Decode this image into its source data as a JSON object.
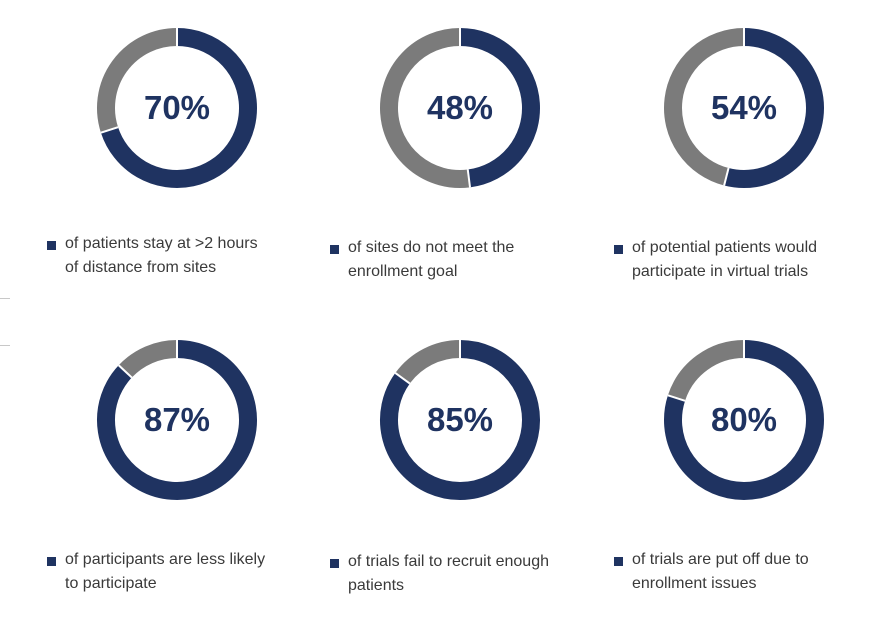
{
  "chart_data": [
    {
      "type": "pie",
      "title": "",
      "values": [
        70,
        30
      ],
      "labels": [
        "highlighted",
        "remainder"
      ],
      "value_label": "70%",
      "caption": "of patients stay at >2 hours of distance from sites",
      "caption_lines": [
        "of patients stay at >2 hours",
        "of distance from sites"
      ]
    },
    {
      "type": "pie",
      "title": "",
      "values": [
        48,
        52
      ],
      "labels": [
        "highlighted",
        "remainder"
      ],
      "value_label": "48%",
      "caption": "of sites do not meet the enrollment goal",
      "caption_lines": [
        "of sites do not meet the",
        "enrollment goal"
      ]
    },
    {
      "type": "pie",
      "title": "",
      "values": [
        54,
        46
      ],
      "labels": [
        "highlighted",
        "remainder"
      ],
      "value_label": "54%",
      "caption": "of potential patients would participate in virtual trials",
      "caption_lines": [
        "of potential patients would",
        "participate in virtual trials"
      ]
    },
    {
      "type": "pie",
      "title": "",
      "values": [
        87,
        13
      ],
      "labels": [
        "highlighted",
        "remainder"
      ],
      "value_label": "87%",
      "caption": "of participants are less likely to participate",
      "caption_lines": [
        "of participants are less likely",
        "to participate"
      ]
    },
    {
      "type": "pie",
      "title": "",
      "values": [
        85,
        15
      ],
      "labels": [
        "highlighted",
        "remainder"
      ],
      "value_label": "85%",
      "caption": "of trials fail to recruit enough patients",
      "caption_lines": [
        "of trials fail to recruit enough",
        "patients"
      ]
    },
    {
      "type": "pie",
      "title": "",
      "values": [
        80,
        20
      ],
      "labels": [
        "highlighted",
        "remainder"
      ],
      "value_label": "80%",
      "caption": "of trials are put off due to enrollment issues",
      "caption_lines": [
        "of trials are put off due to",
        "enrollment issues"
      ]
    }
  ],
  "colors": {
    "highlight": "#1f3361",
    "remainder": "#7b7b7b",
    "text": "#3a3a3a"
  }
}
